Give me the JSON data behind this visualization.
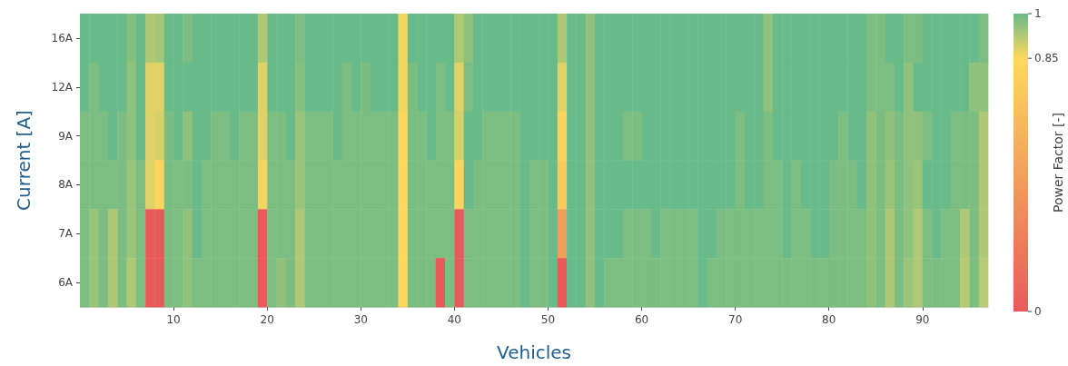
{
  "chart_data": {
    "type": "heatmap",
    "xlabel": "Vehicles",
    "ylabel": "Current [A]",
    "clabel": "Power Factor [-]",
    "x": [
      0.5,
      1.5,
      2.5,
      3.5,
      4.5,
      5.5,
      6.5,
      7.5,
      8.5,
      9.5,
      10.5,
      11.5,
      12.5,
      13.5,
      14.5,
      15.5,
      16.5,
      17.5,
      18.5,
      19.5,
      20.5,
      21.5,
      22.5,
      23.5,
      24.5,
      25.5,
      26.5,
      27.5,
      28.5,
      29.5,
      30.5,
      31.5,
      32.5,
      33.5,
      34.5,
      35.5,
      36.5,
      37.5,
      38.5,
      39.5,
      40.5,
      41.5,
      42.5,
      43.5,
      44.5,
      45.5,
      46.5,
      47.5,
      48.5,
      49.5,
      50.5,
      51.5,
      52.5,
      53.5,
      54.5,
      55.5,
      56.5,
      57.5,
      58.5,
      59.5,
      60.5,
      61.5,
      62.5,
      63.5,
      64.5,
      65.5,
      66.5,
      67.5,
      68.5,
      69.5,
      70.5,
      71.5,
      72.5,
      73.5,
      74.5,
      75.5,
      76.5,
      77.5,
      78.5,
      79.5,
      80.5,
      81.5,
      82.5,
      83.5,
      84.5,
      85.5,
      86.5,
      87.5,
      88.5,
      89.5,
      90.5,
      91.5,
      92.5,
      93.5,
      94.5,
      95.5,
      96.5
    ],
    "xlim": [
      0,
      97
    ],
    "xticks": [
      10,
      20,
      30,
      40,
      50,
      60,
      70,
      80,
      90
    ],
    "y_categories": [
      "16A",
      "12A",
      "9A",
      "8A",
      "7A",
      "6A"
    ],
    "cells": [
      [
        1,
        1,
        1,
        1,
        1,
        0.97,
        1,
        0.93,
        0.94,
        1,
        1,
        0.98,
        1,
        1,
        1,
        1,
        1,
        1,
        1,
        0.93,
        1,
        1,
        1,
        0.98,
        1,
        1,
        1,
        1,
        1,
        1,
        1,
        1,
        1,
        1,
        0.86,
        1,
        1,
        1,
        1,
        1,
        0.93,
        0.96,
        1,
        1,
        1,
        1,
        1,
        1,
        1,
        1,
        1,
        0.93,
        1,
        1,
        0.96,
        1,
        1,
        1,
        1,
        1,
        1,
        1,
        1,
        1,
        1,
        1,
        1,
        1,
        1,
        1,
        1,
        1,
        1,
        0.96,
        1,
        1,
        1,
        1,
        1,
        1,
        1,
        1,
        1,
        1,
        0.98,
        0.98,
        1,
        1,
        0.98,
        0.98,
        1,
        1,
        1,
        1,
        1,
        1,
        0.98
      ],
      [
        1,
        0.98,
        1,
        1,
        1,
        0.96,
        1,
        0.88,
        0.88,
        1,
        1,
        1,
        1,
        1,
        1,
        1,
        1,
        1,
        1,
        0.88,
        1,
        1,
        1,
        0.97,
        1,
        1,
        1,
        1,
        0.98,
        1,
        0.98,
        1,
        1,
        1,
        0.86,
        0.98,
        1,
        1,
        0.98,
        1,
        0.88,
        0.98,
        1,
        1,
        1,
        1,
        1,
        1,
        1,
        1,
        1,
        0.88,
        1,
        1,
        0.96,
        1,
        1,
        1,
        1,
        1,
        1,
        1,
        1,
        1,
        1,
        1,
        1,
        1,
        1,
        1,
        1,
        1,
        1,
        0.96,
        1,
        1,
        1,
        1,
        1,
        1,
        1,
        1,
        1,
        1,
        0.98,
        0.98,
        0.98,
        1,
        0.96,
        1,
        1,
        1,
        1,
        1,
        1,
        0.96,
        0.96
      ],
      [
        0.98,
        0.98,
        0.98,
        1,
        0.98,
        0.96,
        1,
        0.88,
        0.89,
        0.98,
        1,
        0.96,
        1,
        1,
        0.98,
        0.98,
        1,
        0.98,
        0.98,
        0.88,
        0.98,
        0.98,
        1,
        0.95,
        0.98,
        0.98,
        0.98,
        1,
        0.98,
        0.98,
        0.98,
        0.98,
        0.98,
        0.98,
        0.85,
        0.98,
        0.98,
        1,
        0.98,
        0.98,
        0.89,
        1,
        1,
        0.98,
        0.98,
        0.98,
        0.98,
        1,
        1,
        1,
        1,
        0.82,
        1,
        1,
        0.96,
        1,
        1,
        1,
        0.98,
        0.98,
        1,
        1,
        1,
        1,
        1,
        1,
        1,
        1,
        1,
        1,
        0.98,
        1,
        1,
        0.98,
        1,
        1,
        1,
        1,
        1,
        1,
        1,
        0.98,
        1,
        1,
        0.96,
        0.98,
        0.96,
        0.98,
        0.96,
        0.96,
        0.98,
        1,
        1,
        0.98,
        0.98,
        0.98,
        0.93
      ],
      [
        0.98,
        0.98,
        0.98,
        0.98,
        0.98,
        0.95,
        0.98,
        0.88,
        0.83,
        0.98,
        0.98,
        0.98,
        1,
        0.98,
        0.98,
        0.98,
        0.98,
        0.98,
        0.98,
        0.86,
        0.98,
        0.98,
        0.98,
        0.95,
        0.98,
        0.98,
        0.98,
        0.98,
        0.98,
        0.98,
        0.98,
        0.98,
        0.98,
        0.98,
        0.85,
        0.98,
        0.98,
        0.98,
        0.98,
        0.98,
        0.82,
        1,
        0.98,
        0.98,
        0.98,
        0.98,
        0.98,
        1,
        0.98,
        0.98,
        1,
        0.75,
        1,
        1,
        0.96,
        1,
        1,
        1,
        1,
        1,
        1,
        1,
        1,
        1,
        1,
        1,
        1,
        1,
        1,
        1,
        0.98,
        1,
        1,
        0.98,
        0.98,
        1,
        0.98,
        1,
        1,
        1,
        0.98,
        0.98,
        0.98,
        1,
        0.96,
        0.98,
        0.95,
        0.98,
        0.96,
        0.95,
        1,
        1,
        1,
        0.98,
        0.98,
        0.98,
        0.93
      ],
      [
        0.98,
        0.95,
        0.98,
        0.93,
        0.98,
        0.95,
        0.98,
        0,
        0,
        0.98,
        0.98,
        0.96,
        1,
        0.98,
        0.98,
        0.98,
        0.98,
        0.98,
        0.98,
        0,
        0.98,
        0.98,
        0.98,
        0.93,
        0.98,
        0.98,
        0.98,
        0.98,
        0.98,
        0.98,
        0.98,
        0.98,
        0.98,
        0.98,
        0.85,
        0.98,
        0.98,
        0.98,
        0.98,
        0.98,
        0,
        0.98,
        0.98,
        0.98,
        0.98,
        0.98,
        0.98,
        1,
        0.98,
        0.98,
        1,
        0.45,
        1,
        1,
        0.96,
        1,
        1,
        1,
        0.98,
        0.98,
        0.98,
        1,
        0.98,
        0.98,
        0.98,
        0.98,
        1,
        1,
        0.98,
        0.98,
        0.98,
        0.98,
        0.98,
        0.98,
        0.98,
        1,
        0.98,
        0.98,
        1,
        1,
        0.98,
        0.98,
        0.98,
        0.98,
        0.96,
        0.98,
        0.93,
        0.98,
        0.96,
        0.93,
        0.98,
        1,
        0.98,
        0.98,
        0.93,
        0.98,
        0.93
      ],
      [
        0.98,
        0.95,
        0.98,
        0.93,
        0.98,
        0.93,
        0.98,
        0,
        0,
        0.98,
        0.98,
        0.96,
        0.98,
        0.98,
        0.98,
        0.98,
        0.98,
        0.98,
        0.98,
        0,
        0.98,
        0.96,
        0.98,
        0.93,
        0.98,
        0.98,
        0.98,
        0.98,
        0.98,
        0.98,
        0.98,
        0.98,
        0.98,
        0.98,
        0.85,
        0.98,
        0.98,
        0.98,
        0,
        0.98,
        0,
        0.98,
        0.98,
        0.98,
        0.98,
        0.98,
        0.98,
        1,
        0.98,
        0.98,
        1,
        0,
        1,
        1,
        0.96,
        1,
        0.98,
        0.98,
        0.98,
        0.98,
        0.98,
        0.98,
        0.98,
        0.98,
        0.98,
        0.98,
        1,
        0.98,
        0.98,
        0.98,
        0.98,
        0.98,
        0.98,
        0.98,
        0.98,
        0.98,
        0.98,
        0.98,
        0.98,
        0.98,
        0.98,
        0.98,
        0.98,
        0.98,
        0.96,
        0.98,
        0.93,
        0.98,
        0.95,
        0.93,
        0.98,
        0.98,
        0.98,
        0.98,
        0.92,
        0.98,
        0.92
      ]
    ],
    "clim": [
      0,
      1
    ],
    "cticks": [
      0,
      0.85,
      1
    ]
  }
}
